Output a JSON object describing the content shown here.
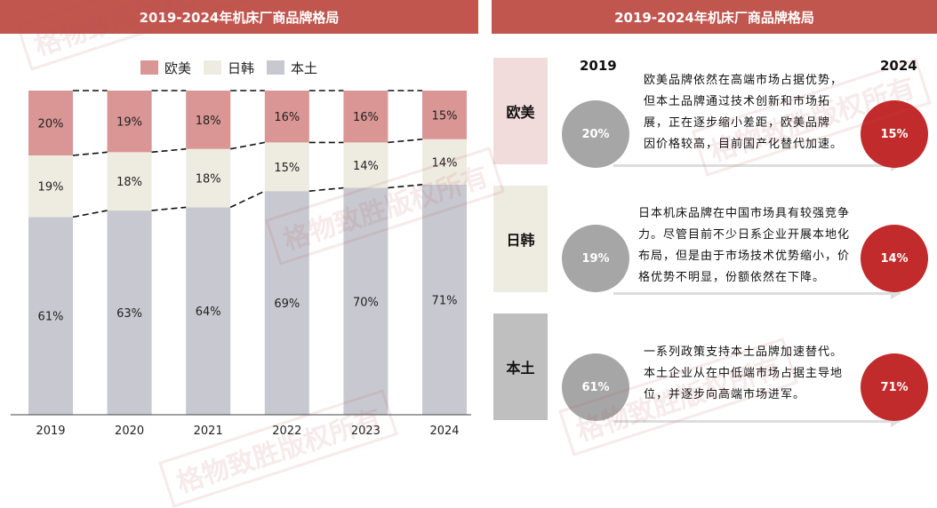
{
  "panels": {
    "left_title": "2019-2024年机床厂商品牌格局",
    "right_title": "2019-2024年机床厂商品牌格局"
  },
  "colors": {
    "header": "#c1564f",
    "west": "#d99694",
    "jpkr": "#eeece1",
    "local": "#c8c9d0",
    "circle_start": "#a6a6a6",
    "circle_end": "#c22b2b"
  },
  "chart_data": {
    "type": "bar",
    "stacked": true,
    "categories": [
      "2019",
      "2020",
      "2021",
      "2022",
      "2023",
      "2024"
    ],
    "series": [
      {
        "name": "本土",
        "values": [
          61,
          63,
          64,
          69,
          70,
          71
        ],
        "labels": [
          "61%",
          "63%",
          "64%",
          "69%",
          "70%",
          "71%"
        ]
      },
      {
        "name": "日韩",
        "values": [
          19,
          18,
          18,
          15,
          14,
          14
        ],
        "labels": [
          "19%",
          "18%",
          "18%",
          "15%",
          "14%",
          "14%"
        ]
      },
      {
        "name": "欧美",
        "values": [
          20,
          19,
          18,
          16,
          16,
          15
        ],
        "labels": [
          "20%",
          "19%",
          "18%",
          "16%",
          "16%",
          "15%"
        ]
      }
    ],
    "legend": [
      "欧美",
      "日韩",
      "本土"
    ],
    "ylim": [
      0,
      100
    ],
    "legend_position": "top-center"
  },
  "comparison": {
    "start_year": "2019",
    "end_year": "2024",
    "rows": [
      {
        "category": "欧美",
        "start": "20%",
        "end": "15%",
        "lines": [
          "欧美品牌依然在高端市场占据优势，",
          "但本土品牌通过技术创新和市场拓",
          "展，正在逐步缩小差距，欧美品牌",
          "因价格较高，目前国产化替代加速。"
        ]
      },
      {
        "category": "日韩",
        "start": "19%",
        "end": "14%",
        "lines": [
          "日本机床品牌在中国市场具有较强竞争",
          "力。尽管目前不少日系企业开展本地化",
          "布局，但是由于市场技术优势缩小，价",
          "格优势不明显，份额依然在下降。"
        ]
      },
      {
        "category": "本土",
        "start": "61%",
        "end": "71%",
        "lines": [
          "一系列政策支持本土品牌加速替代。",
          "本土企业从在中低端市场占据主导地",
          "位，并逐步向高端市场进军。"
        ]
      }
    ]
  },
  "watermark": "格物致胜版权所有"
}
